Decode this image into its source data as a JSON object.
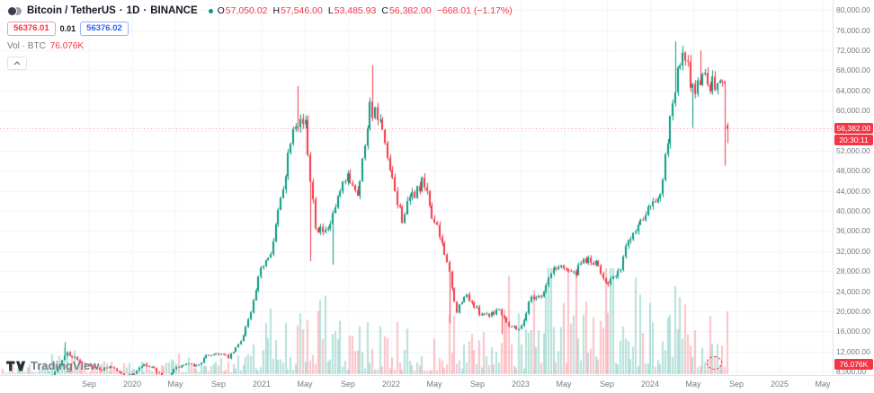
{
  "header": {
    "symbol": "Bitcoin / TetherUS",
    "separator": "·",
    "interval": "1D",
    "exchange": "BINANCE",
    "ohlc": {
      "o_label": "O",
      "o": "57,050.02",
      "h_label": "H",
      "h": "57,546.00",
      "l_label": "L",
      "l": "53,485.93",
      "c_label": "C",
      "c": "56,382.00",
      "change": "−668.01 (−1.17%)"
    },
    "sell_price": "56376.01",
    "spread": "0.01",
    "buy_price": "56376.02",
    "volume_label": "Vol · BTC",
    "volume_value": "76.076K"
  },
  "badges": {
    "last_price": "56,382.00",
    "countdown": "20:30:11",
    "volume": "76.076K"
  },
  "footer": {
    "logo_text": "TradingView"
  },
  "colors": {
    "up": "#089981",
    "down": "#f23645",
    "buy_blue": "#2962ff",
    "text": "#131722",
    "muted": "#787b86",
    "grid": "#f0f3fa",
    "axis_border": "#e0e3eb",
    "badge_red": "#f23645"
  },
  "chart_data": {
    "type": "candlestick",
    "title": "Bitcoin / TetherUS · 1D · BINANCE",
    "y_range": [
      8000,
      80000
    ],
    "x_range": [
      "2019-01",
      "2025-05"
    ],
    "grid": true,
    "price_axis": {
      "min": 8000,
      "max": 80000,
      "step": 4000
    },
    "price_ticks": [
      "80,000.00",
      "76,000.00",
      "72,000.00",
      "68,000.00",
      "64,000.00",
      "60,000.00",
      "56,000.00",
      "52,000.00",
      "48,000.00",
      "44,000.00",
      "40,000.00",
      "36,000.00",
      "32,000.00",
      "28,000.00",
      "24,000.00",
      "20,000.00",
      "16,000.00",
      "12,000.00",
      "8,000.00"
    ],
    "time_ticks": [
      {
        "label": "Sep",
        "ym": "2019-09"
      },
      {
        "label": "2020",
        "ym": "2020-01"
      },
      {
        "label": "May",
        "ym": "2020-05"
      },
      {
        "label": "Sep",
        "ym": "2020-09"
      },
      {
        "label": "2021",
        "ym": "2021-01"
      },
      {
        "label": "May",
        "ym": "2021-05"
      },
      {
        "label": "Sep",
        "ym": "2021-09"
      },
      {
        "label": "2022",
        "ym": "2022-01"
      },
      {
        "label": "May",
        "ym": "2022-05"
      },
      {
        "label": "Sep",
        "ym": "2022-09"
      },
      {
        "label": "2023",
        "ym": "2023-01"
      },
      {
        "label": "May",
        "ym": "2023-05"
      },
      {
        "label": "Sep",
        "ym": "2023-09"
      },
      {
        "label": "2024",
        "ym": "2024-01"
      },
      {
        "label": "May",
        "ym": "2024-05"
      },
      {
        "label": "Sep",
        "ym": "2024-09"
      },
      {
        "label": "2025",
        "ym": "2025-01"
      },
      {
        "label": "May",
        "ym": "2025-05"
      }
    ],
    "last": {
      "open": 57050.02,
      "high": 57546.0,
      "low": 53485.93,
      "close": 56382.0,
      "change": -668.01,
      "change_pct": -1.17
    },
    "monthly": [
      [
        "2019-01",
        3500,
        0.05
      ],
      [
        "2019-02",
        3850,
        0.05
      ],
      [
        "2019-03",
        4100,
        0.06
      ],
      [
        "2019-04",
        5300,
        0.08
      ],
      [
        "2019-05",
        8550,
        0.12
      ],
      [
        "2019-06",
        11800,
        0.14
      ],
      [
        "2019-07",
        10100,
        0.11
      ],
      [
        "2019-08",
        9600,
        0.08
      ],
      [
        "2019-09",
        8300,
        0.07
      ],
      [
        "2019-10",
        9150,
        0.08
      ],
      [
        "2019-11",
        7550,
        0.06
      ],
      [
        "2019-12",
        7200,
        0.06
      ],
      [
        "2020-01",
        9350,
        0.08
      ],
      [
        "2020-02",
        8550,
        0.08
      ],
      [
        "2020-03",
        6450,
        0.2
      ],
      [
        "2020-04",
        8650,
        0.11
      ],
      [
        "2020-05",
        9450,
        0.1
      ],
      [
        "2020-06",
        9140,
        0.07
      ],
      [
        "2020-07",
        11350,
        0.08
      ],
      [
        "2020-08",
        11650,
        0.09
      ],
      [
        "2020-09",
        10780,
        0.08
      ],
      [
        "2020-10",
        13800,
        0.11
      ],
      [
        "2020-11",
        19700,
        0.18
      ],
      [
        "2020-12",
        29000,
        0.24
      ],
      [
        "2021-01",
        33100,
        0.36
      ],
      [
        "2021-02",
        45200,
        0.32
      ],
      [
        "2021-03",
        58800,
        0.3
      ],
      [
        "2021-04",
        57750,
        0.34
      ],
      [
        "2021-05",
        37300,
        0.68
      ],
      [
        "2021-06",
        35000,
        0.44
      ],
      [
        "2021-07",
        41600,
        0.3
      ],
      [
        "2021-08",
        47100,
        0.28
      ],
      [
        "2021-09",
        43800,
        0.27
      ],
      [
        "2021-10",
        61300,
        0.29
      ],
      [
        "2021-11",
        57000,
        0.3
      ],
      [
        "2021-12",
        46200,
        0.27
      ],
      [
        "2022-01",
        38500,
        0.28
      ],
      [
        "2022-02",
        43200,
        0.24
      ],
      [
        "2022-03",
        45500,
        0.22
      ],
      [
        "2022-04",
        37700,
        0.22
      ],
      [
        "2022-05",
        31800,
        0.34
      ],
      [
        "2022-06",
        19900,
        0.42
      ],
      [
        "2022-07",
        23300,
        0.27
      ],
      [
        "2022-08",
        20050,
        0.24
      ],
      [
        "2022-09",
        19400,
        0.24
      ],
      [
        "2022-10",
        20500,
        0.22
      ],
      [
        "2022-11",
        17100,
        0.52
      ],
      [
        "2022-12",
        16550,
        0.3
      ],
      [
        "2023-01",
        23100,
        0.48
      ],
      [
        "2023-02",
        23150,
        0.55
      ],
      [
        "2023-03",
        28500,
        0.85
      ],
      [
        "2023-04",
        29250,
        0.6
      ],
      [
        "2023-05",
        27200,
        0.78
      ],
      [
        "2023-06",
        30450,
        0.92
      ],
      [
        "2023-07",
        29230,
        0.66
      ],
      [
        "2023-08",
        25940,
        1.0
      ],
      [
        "2023-09",
        26960,
        0.5
      ],
      [
        "2023-10",
        34650,
        0.52
      ],
      [
        "2023-11",
        37700,
        0.48
      ],
      [
        "2023-12",
        42280,
        0.46
      ],
      [
        "2024-01",
        42580,
        0.44
      ],
      [
        "2024-02",
        61200,
        0.5
      ],
      [
        "2024-03",
        71300,
        0.54
      ],
      [
        "2024-04",
        63800,
        0.46
      ],
      [
        "2024-05",
        67500,
        0.4
      ],
      [
        "2024-06",
        64500,
        0.36
      ],
      [
        "2024-07",
        66500,
        0.36
      ],
      [
        "2024-08",
        56382,
        0.42
      ]
    ],
    "extremes": [
      [
        "2019-06-26",
        13880,
        "high"
      ],
      [
        "2020-03-13",
        3850,
        "low"
      ],
      [
        "2021-04-14",
        64854,
        "high"
      ],
      [
        "2021-05-19",
        30000,
        "low"
      ],
      [
        "2021-07-20",
        29300,
        "low"
      ],
      [
        "2021-11-10",
        69000,
        "high"
      ],
      [
        "2022-06-18",
        17600,
        "low"
      ],
      [
        "2022-11-09",
        15476,
        "low"
      ],
      [
        "2024-03-14",
        73777,
        "high"
      ],
      [
        "2024-05-01",
        56552,
        "low"
      ],
      [
        "2024-05-21",
        71950,
        "high"
      ],
      [
        "2024-08-05",
        49000,
        "low"
      ]
    ]
  }
}
